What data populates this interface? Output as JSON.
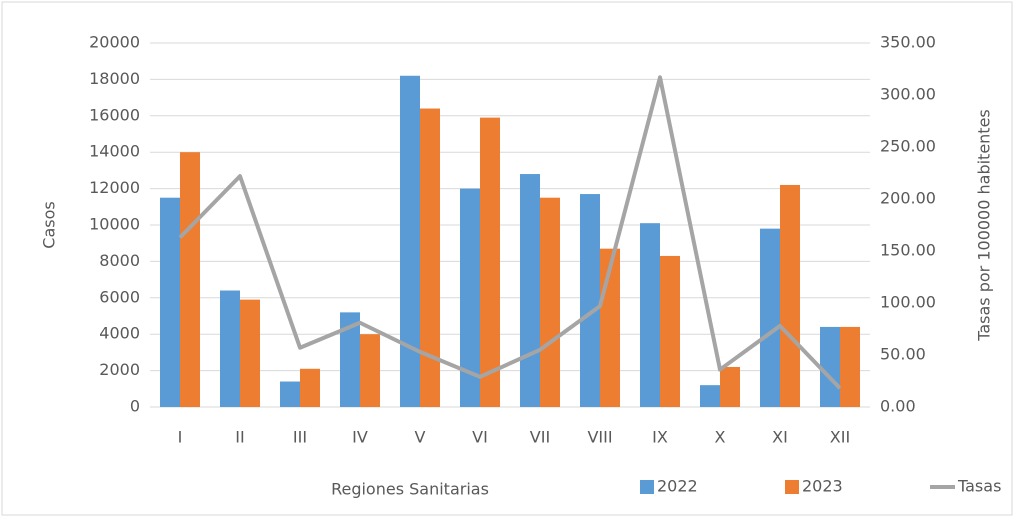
{
  "chart_data": {
    "type": "bar-line",
    "x_label": "Regiones Sanitarias",
    "y_label": "Casos",
    "y2_label": "Tasas por 100000 habitentes",
    "categories": [
      "I",
      "II",
      "III",
      "IV",
      "V",
      "VI",
      "VII",
      "VIII",
      "IX",
      "X",
      "XI",
      "XII"
    ],
    "series": [
      {
        "name": "2022",
        "type": "bar",
        "color": "#5b9bd5",
        "values": [
          11500,
          6400,
          1400,
          5200,
          18200,
          12000,
          12800,
          11700,
          10100,
          1200,
          9800,
          4400
        ]
      },
      {
        "name": "2023",
        "type": "bar",
        "color": "#ed7d31",
        "values": [
          14000,
          5900,
          2100,
          4000,
          16400,
          15900,
          11500,
          8700,
          8300,
          2200,
          12200,
          4400
        ]
      },
      {
        "name": "Tasas",
        "type": "line",
        "axis": "y2",
        "color": "#a5a5a5",
        "values": [
          163,
          222,
          57,
          81,
          53,
          29,
          55,
          97,
          317,
          36,
          78,
          18
        ]
      }
    ],
    "ylim": [
      0,
      20000
    ],
    "yticks": [
      0,
      2000,
      4000,
      6000,
      8000,
      10000,
      12000,
      14000,
      16000,
      18000,
      20000
    ],
    "y2lim": [
      0,
      350
    ],
    "y2ticks": [
      {
        "value": 0,
        "label": "0.00"
      },
      {
        "value": 50,
        "label": "50.00"
      },
      {
        "value": 100,
        "label": "100.00"
      },
      {
        "value": 150,
        "label": "150.00"
      },
      {
        "value": 200,
        "label": "200.00"
      },
      {
        "value": 250,
        "label": "250.00"
      },
      {
        "value": 300,
        "label": "300.00"
      },
      {
        "value": 350,
        "label": "350.00"
      }
    ],
    "grid": true,
    "legend": "bottom"
  }
}
